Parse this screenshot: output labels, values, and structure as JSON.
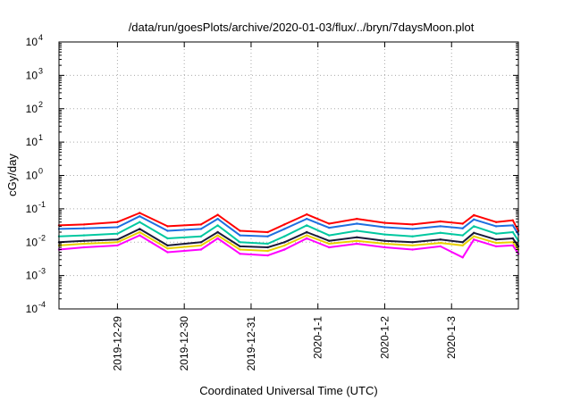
{
  "chart_data": {
    "type": "line",
    "title": "/data/run/goesPlots/archive/2020-01-03/flux/../bryn/7daysMoon.plot",
    "xlabel": "Coordinated Universal Time (UTC)",
    "ylabel": "cGy/day",
    "yscale": "log",
    "ylim": [
      0.0001,
      10000
    ],
    "y_ticks": [
      {
        "base": "10",
        "exp": "-4"
      },
      {
        "base": "10",
        "exp": "-3"
      },
      {
        "base": "10",
        "exp": "-2"
      },
      {
        "base": "10",
        "exp": "-1"
      },
      {
        "base": "10",
        "exp": "0"
      },
      {
        "base": "10",
        "exp": "1"
      },
      {
        "base": "10",
        "exp": "2"
      },
      {
        "base": "10",
        "exp": "3"
      },
      {
        "base": "10",
        "exp": "4"
      }
    ],
    "xlim": [
      "2019-12-28T03:00",
      "2020-01-04T00:00"
    ],
    "x_ticks": [
      {
        "label": "2019-12-29",
        "value": "2019-12-29T00:00"
      },
      {
        "label": "2019-12-30",
        "value": "2019-12-30T00:00"
      },
      {
        "label": "2019-12-31",
        "value": "2019-12-31T00:00"
      },
      {
        "label": "2020-1-1",
        "value": "2020-01-01T00:00"
      },
      {
        "label": "2020-1-2",
        "value": "2020-01-02T00:00"
      },
      {
        "label": "2020-1-3",
        "value": "2020-01-03T00:00"
      }
    ],
    "grid": true,
    "legend": "none",
    "series": [
      {
        "color": "#ff0000",
        "x": [
          "2019-12-28T03:00",
          "2019-12-28T12:00",
          "2019-12-29T00:00",
          "2019-12-29T08:00",
          "2019-12-29T18:00",
          "2019-12-30T06:00",
          "2019-12-30T12:00",
          "2019-12-30T20:00",
          "2019-12-31T06:00",
          "2019-12-31T12:00",
          "2019-12-31T20:00",
          "2020-01-01T04:00",
          "2020-01-01T14:00",
          "2020-01-02T00:00",
          "2020-01-02T10:00",
          "2020-01-02T20:00",
          "2020-01-03T04:00",
          "2020-01-03T08:00",
          "2020-01-03T16:00",
          "2020-01-03T22:00",
          "2020-01-04T00:00"
        ],
        "values": [
          0.032,
          0.034,
          0.04,
          0.075,
          0.03,
          0.034,
          0.066,
          0.022,
          0.02,
          0.034,
          0.068,
          0.036,
          0.05,
          0.038,
          0.034,
          0.042,
          0.036,
          0.065,
          0.04,
          0.045,
          0.022
        ]
      },
      {
        "color": "#1e6fe0",
        "x": [
          "2019-12-28T03:00",
          "2019-12-28T12:00",
          "2019-12-29T00:00",
          "2019-12-29T08:00",
          "2019-12-29T18:00",
          "2019-12-30T06:00",
          "2019-12-30T12:00",
          "2019-12-30T20:00",
          "2019-12-31T06:00",
          "2019-12-31T12:00",
          "2019-12-31T20:00",
          "2020-01-01T04:00",
          "2020-01-01T14:00",
          "2020-01-02T00:00",
          "2020-01-02T10:00",
          "2020-01-02T20:00",
          "2020-01-03T04:00",
          "2020-01-03T08:00",
          "2020-01-03T16:00",
          "2020-01-03T22:00",
          "2020-01-04T00:00"
        ],
        "values": [
          0.025,
          0.026,
          0.028,
          0.06,
          0.022,
          0.025,
          0.05,
          0.016,
          0.015,
          0.025,
          0.05,
          0.027,
          0.036,
          0.028,
          0.025,
          0.03,
          0.026,
          0.048,
          0.03,
          0.032,
          0.017
        ]
      },
      {
        "color": "#00c8a0",
        "x": [
          "2019-12-28T03:00",
          "2019-12-28T12:00",
          "2019-12-29T00:00",
          "2019-12-29T08:00",
          "2019-12-29T18:00",
          "2019-12-30T06:00",
          "2019-12-30T12:00",
          "2019-12-30T20:00",
          "2019-12-31T06:00",
          "2019-12-31T12:00",
          "2019-12-31T20:00",
          "2020-01-01T04:00",
          "2020-01-01T14:00",
          "2020-01-02T00:00",
          "2020-01-02T10:00",
          "2020-01-02T20:00",
          "2020-01-03T04:00",
          "2020-01-03T08:00",
          "2020-01-03T16:00",
          "2020-01-03T22:00",
          "2020-01-04T00:00"
        ],
        "values": [
          0.015,
          0.016,
          0.018,
          0.04,
          0.013,
          0.015,
          0.032,
          0.01,
          0.009,
          0.015,
          0.032,
          0.016,
          0.022,
          0.017,
          0.015,
          0.019,
          0.016,
          0.03,
          0.018,
          0.02,
          0.011
        ]
      },
      {
        "color": "#1a1a3a",
        "x": [
          "2019-12-28T03:00",
          "2019-12-28T12:00",
          "2019-12-29T00:00",
          "2019-12-29T08:00",
          "2019-12-29T18:00",
          "2019-12-30T06:00",
          "2019-12-30T12:00",
          "2019-12-30T20:00",
          "2019-12-31T06:00",
          "2019-12-31T12:00",
          "2019-12-31T20:00",
          "2020-01-01T04:00",
          "2020-01-01T14:00",
          "2020-01-02T00:00",
          "2020-01-02T10:00",
          "2020-01-02T20:00",
          "2020-01-03T04:00",
          "2020-01-03T08:00",
          "2020-01-03T16:00",
          "2020-01-03T22:00",
          "2020-01-04T00:00"
        ],
        "values": [
          0.01,
          0.011,
          0.012,
          0.025,
          0.008,
          0.01,
          0.02,
          0.0075,
          0.007,
          0.01,
          0.02,
          0.011,
          0.014,
          0.011,
          0.01,
          0.012,
          0.01,
          0.019,
          0.012,
          0.013,
          0.0075
        ]
      },
      {
        "color": "#e8d000",
        "x": [
          "2019-12-28T03:00",
          "2019-12-28T12:00",
          "2019-12-29T00:00",
          "2019-12-29T08:00",
          "2019-12-29T18:00",
          "2019-12-30T06:00",
          "2019-12-30T12:00",
          "2019-12-30T20:00",
          "2019-12-31T06:00",
          "2019-12-31T12:00",
          "2019-12-31T20:00",
          "2020-01-01T04:00",
          "2020-01-01T14:00",
          "2020-01-02T00:00",
          "2020-01-02T10:00",
          "2020-01-02T20:00",
          "2020-01-03T04:00",
          "2020-01-03T08:00",
          "2020-01-03T16:00",
          "2020-01-03T22:00",
          "2020-01-04T00:00"
        ],
        "values": [
          0.008,
          0.009,
          0.01,
          0.02,
          0.0065,
          0.008,
          0.016,
          0.006,
          0.0055,
          0.008,
          0.016,
          0.009,
          0.011,
          0.009,
          0.008,
          0.0095,
          0.008,
          0.015,
          0.0095,
          0.01,
          0.006
        ]
      },
      {
        "color": "#ff00ff",
        "x": [
          "2019-12-28T03:00",
          "2019-12-28T12:00",
          "2019-12-29T00:00",
          "2019-12-29T08:00",
          "2019-12-29T18:00",
          "2019-12-30T06:00",
          "2019-12-30T12:00",
          "2019-12-30T20:00",
          "2019-12-31T06:00",
          "2019-12-31T12:00",
          "2019-12-31T20:00",
          "2020-01-01T04:00",
          "2020-01-01T14:00",
          "2020-01-02T00:00",
          "2020-01-02T10:00",
          "2020-01-02T20:00",
          "2020-01-03T04:00",
          "2020-01-03T08:00",
          "2020-01-03T16:00",
          "2020-01-03T22:00",
          "2020-01-04T00:00"
        ],
        "values": [
          0.006,
          0.007,
          0.008,
          0.016,
          0.005,
          0.006,
          0.013,
          0.0045,
          0.004,
          0.006,
          0.013,
          0.007,
          0.009,
          0.007,
          0.006,
          0.0075,
          0.0035,
          0.012,
          0.0075,
          0.008,
          0.0045
        ]
      }
    ]
  }
}
